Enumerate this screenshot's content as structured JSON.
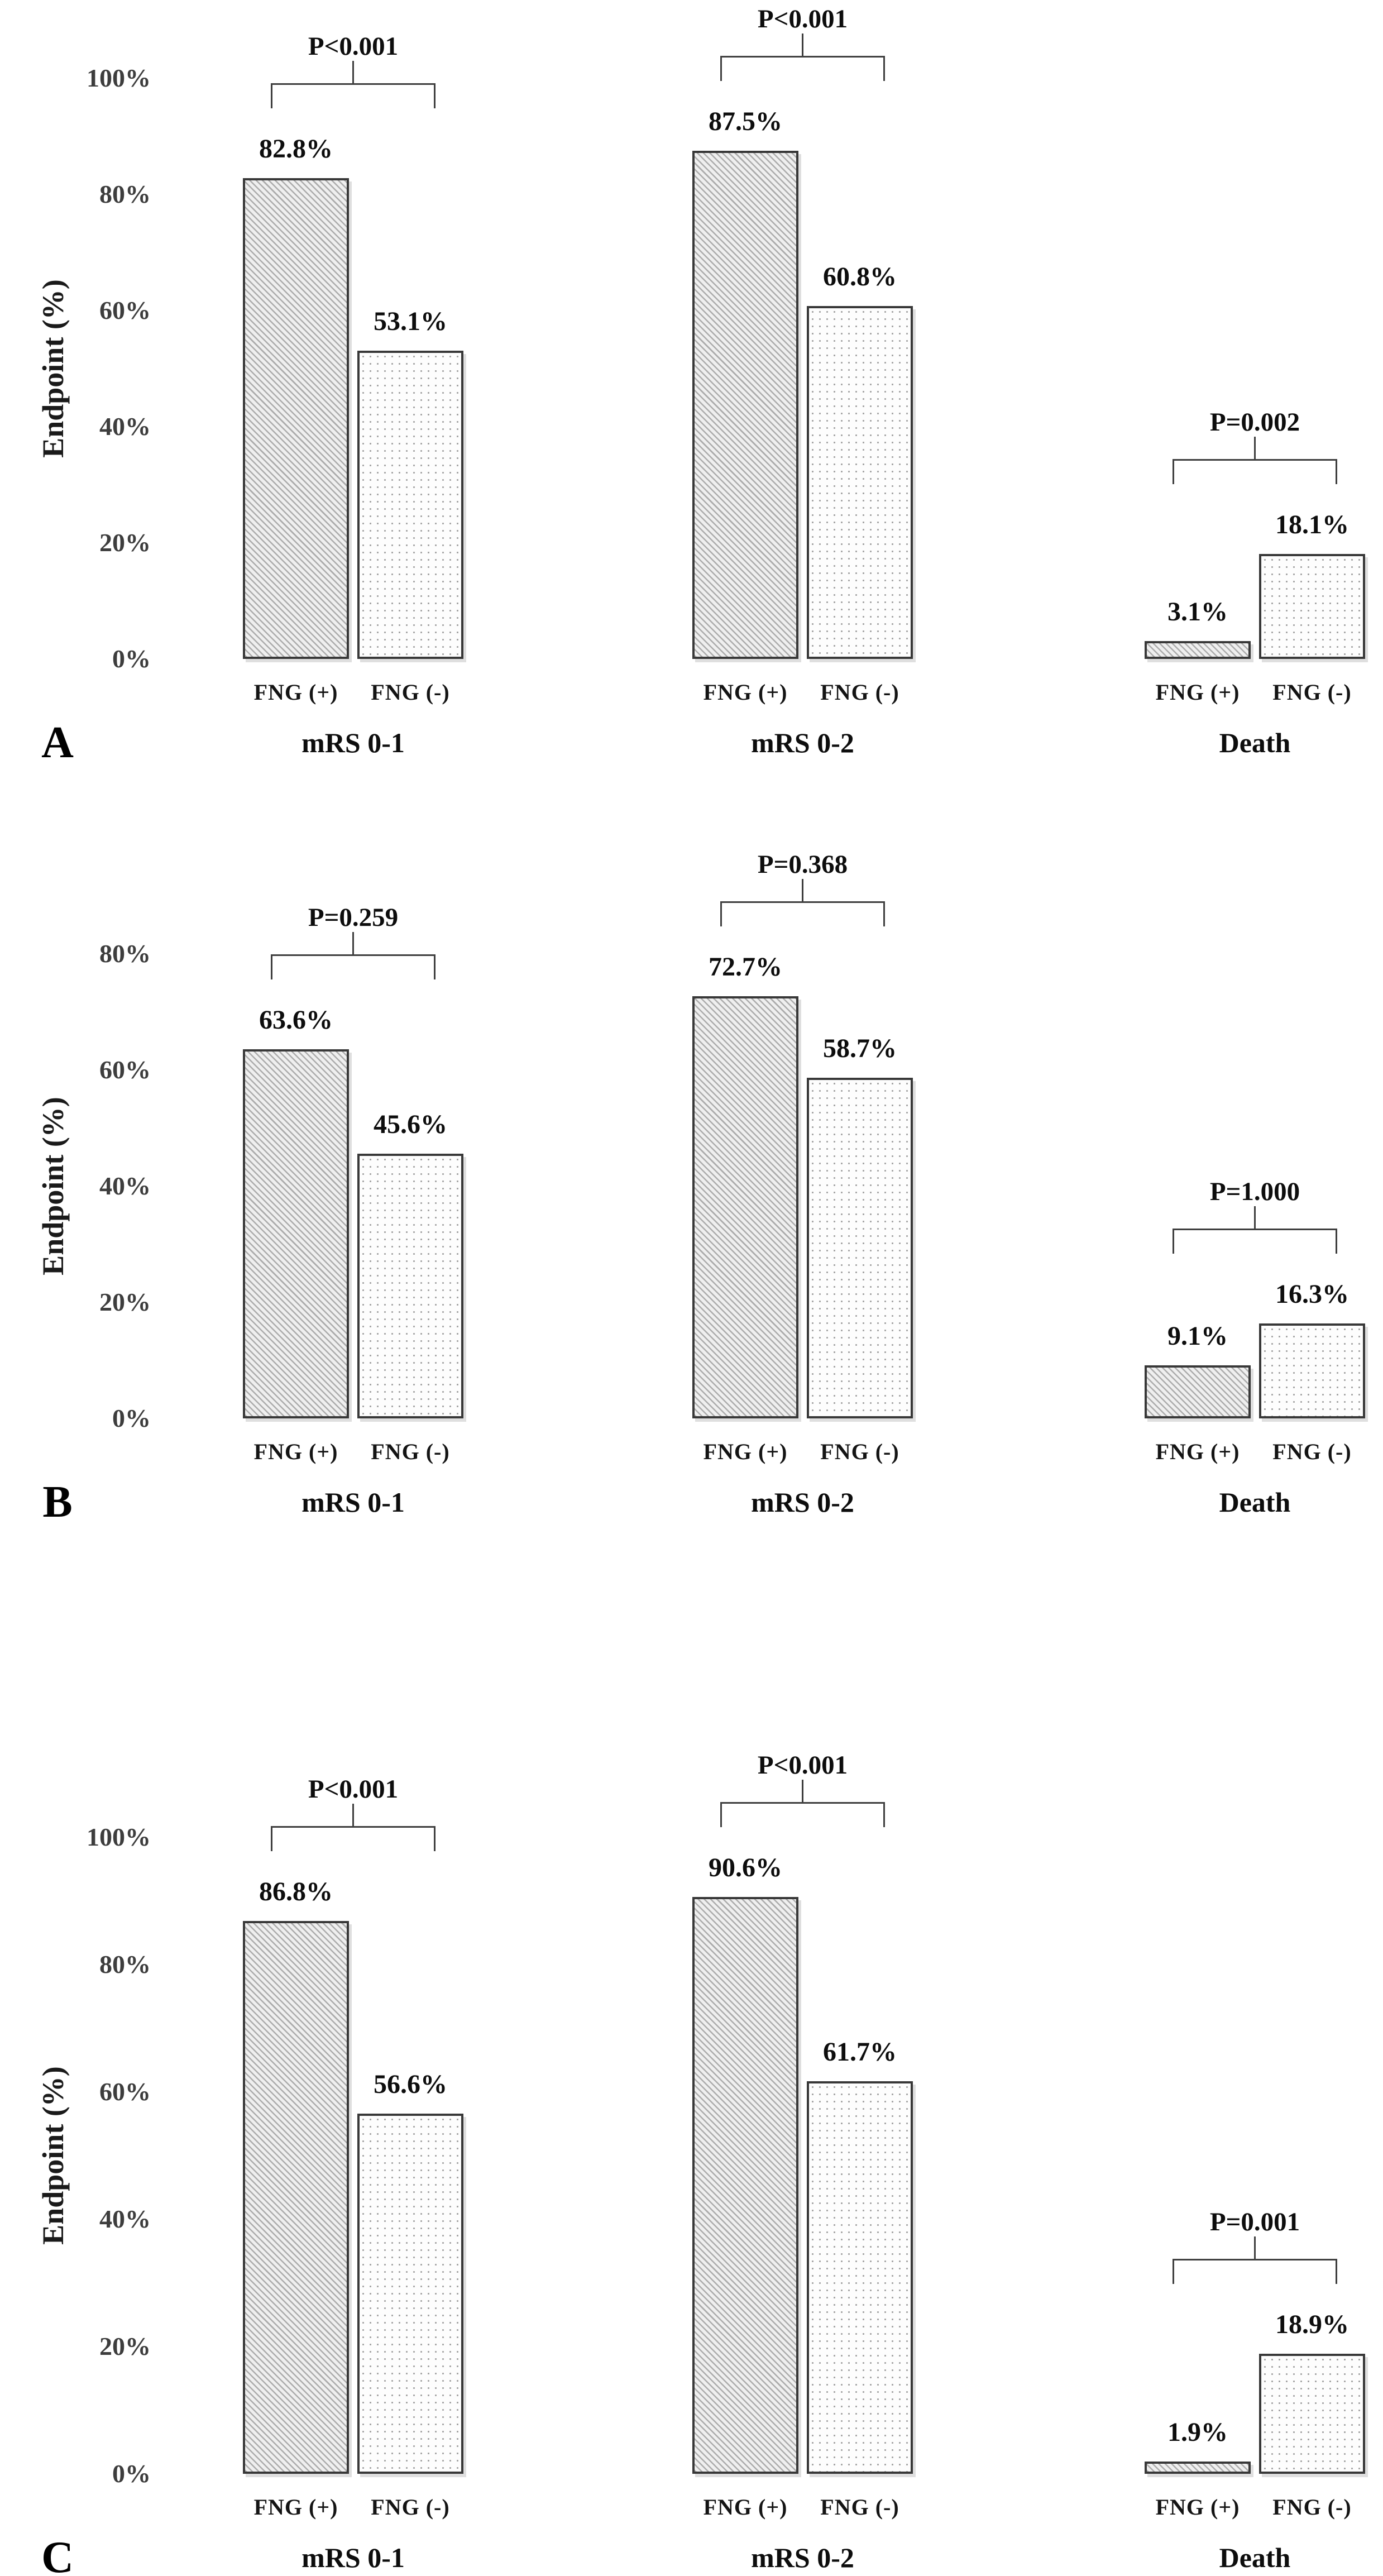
{
  "chart_data": {
    "type": "bar",
    "title": "",
    "ylabel": "Endpoint (%)",
    "grid": false,
    "legend": "none",
    "bar_patterns": {
      "FNG (+)": "diagonal-hatch",
      "FNG (-)": "dots"
    },
    "style": {
      "background": "#ffffff",
      "bar_border": "#383838",
      "hatch_line": "rgba(105,105,105,0.50)",
      "hatch_bg": "#efefef",
      "dot_color": "#a2a2a2",
      "dot_bg": "#fdfdfd",
      "bracket_color": "#3f3f3f",
      "text_color": "#0d0d0d",
      "tick_color": "#3d3d3d"
    },
    "panels": [
      {
        "letter": "A",
        "ylim": [
          0,
          100
        ],
        "yticks": [
          {
            "value": 0,
            "label": "0%"
          },
          {
            "value": 20,
            "label": "20%"
          },
          {
            "value": 40,
            "label": "40%"
          },
          {
            "value": 60,
            "label": "60%"
          },
          {
            "value": 80,
            "label": "80%"
          },
          {
            "value": 100,
            "label": "100%"
          }
        ],
        "groups": [
          {
            "title": "mRS 0-1",
            "p_label": "P<0.001",
            "bars": [
              {
                "category": "FNG (+)",
                "value": 82.8,
                "value_label": "82.8%",
                "pattern": "hatch"
              },
              {
                "category": "FNG (-)",
                "value": 53.1,
                "value_label": "53.1%",
                "pattern": "dots"
              }
            ]
          },
          {
            "title": "mRS 0-2",
            "p_label": "P<0.001",
            "bars": [
              {
                "category": "FNG (+)",
                "value": 87.5,
                "value_label": "87.5%",
                "pattern": "hatch"
              },
              {
                "category": "FNG (-)",
                "value": 60.8,
                "value_label": "60.8%",
                "pattern": "dots"
              }
            ]
          },
          {
            "title": "Death",
            "p_label": "P=0.002",
            "bars": [
              {
                "category": "FNG (+)",
                "value": 3.1,
                "value_label": "3.1%",
                "pattern": "hatch"
              },
              {
                "category": "FNG (-)",
                "value": 18.1,
                "value_label": "18.1%",
                "pattern": "dots"
              }
            ]
          }
        ]
      },
      {
        "letter": "B",
        "ylim": [
          0,
          80
        ],
        "yticks": [
          {
            "value": 0,
            "label": "0%"
          },
          {
            "value": 20,
            "label": "20%"
          },
          {
            "value": 40,
            "label": "40%"
          },
          {
            "value": 60,
            "label": "60%"
          },
          {
            "value": 80,
            "label": "80%"
          }
        ],
        "groups": [
          {
            "title": "mRS 0-1",
            "p_label": "P=0.259",
            "bars": [
              {
                "category": "FNG (+)",
                "value": 63.6,
                "value_label": "63.6%",
                "pattern": "hatch"
              },
              {
                "category": "FNG (-)",
                "value": 45.6,
                "value_label": "45.6%",
                "pattern": "dots"
              }
            ]
          },
          {
            "title": "mRS 0-2",
            "p_label": "P=0.368",
            "bars": [
              {
                "category": "FNG (+)",
                "value": 72.7,
                "value_label": "72.7%",
                "pattern": "hatch"
              },
              {
                "category": "FNG (-)",
                "value": 58.7,
                "value_label": "58.7%",
                "pattern": "dots"
              }
            ]
          },
          {
            "title": "Death",
            "p_label": "P=1.000",
            "bars": [
              {
                "category": "FNG (+)",
                "value": 9.1,
                "value_label": "9.1%",
                "pattern": "hatch"
              },
              {
                "category": "FNG (-)",
                "value": 16.3,
                "value_label": "16.3%",
                "pattern": "dots"
              }
            ]
          }
        ]
      },
      {
        "letter": "C",
        "ylim": [
          0,
          100
        ],
        "yticks": [
          {
            "value": 0,
            "label": "0%"
          },
          {
            "value": 20,
            "label": "20%"
          },
          {
            "value": 40,
            "label": "40%"
          },
          {
            "value": 60,
            "label": "60%"
          },
          {
            "value": 80,
            "label": "80%"
          },
          {
            "value": 100,
            "label": "100%"
          }
        ],
        "groups": [
          {
            "title": "mRS 0-1",
            "p_label": "P<0.001",
            "bars": [
              {
                "category": "FNG (+)",
                "value": 86.8,
                "value_label": "86.8%",
                "pattern": "hatch"
              },
              {
                "category": "FNG (-)",
                "value": 56.6,
                "value_label": "56.6%",
                "pattern": "dots"
              }
            ]
          },
          {
            "title": "mRS 0-2",
            "p_label": "P<0.001",
            "bars": [
              {
                "category": "FNG (+)",
                "value": 90.6,
                "value_label": "90.6%",
                "pattern": "hatch"
              },
              {
                "category": "FNG (-)",
                "value": 61.7,
                "value_label": "61.7%",
                "pattern": "dots"
              }
            ]
          },
          {
            "title": "Death",
            "p_label": "P=0.001",
            "bars": [
              {
                "category": "FNG (+)",
                "value": 1.9,
                "value_label": "1.9%",
                "pattern": "hatch"
              },
              {
                "category": "FNG (-)",
                "value": 18.9,
                "value_label": "18.9%",
                "pattern": "dots"
              }
            ]
          }
        ]
      }
    ]
  }
}
